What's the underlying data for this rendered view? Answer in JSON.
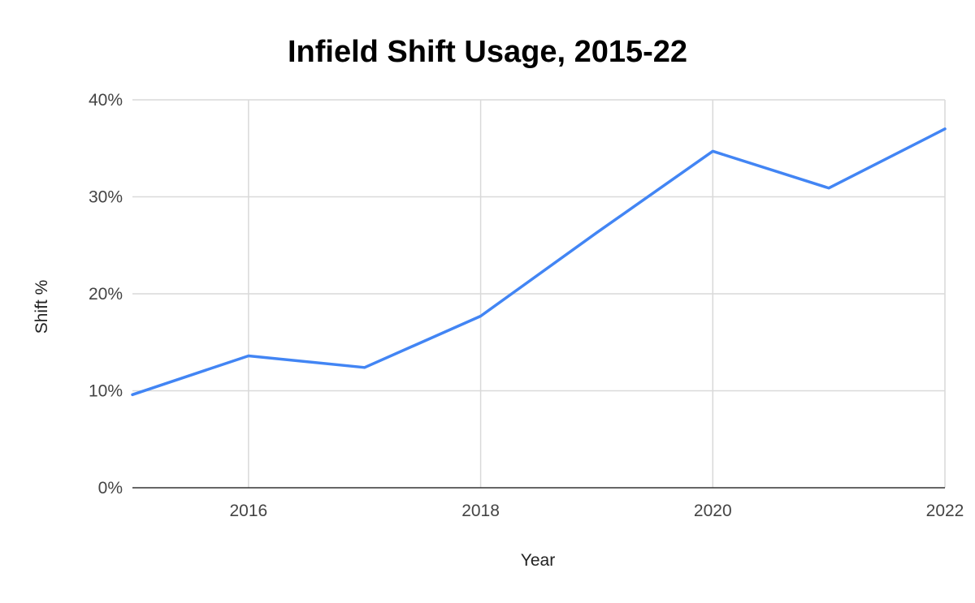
{
  "chart_data": {
    "type": "line",
    "title": "Infield Shift Usage, 2015-22",
    "xlabel": "Year",
    "ylabel": "Shift %",
    "x": [
      2015,
      2016,
      2017,
      2018,
      2019,
      2020,
      2021,
      2022
    ],
    "series": [
      {
        "values": [
          9.6,
          13.6,
          12.4,
          17.7,
          26.3,
          34.7,
          30.9,
          37.0
        ],
        "color": "#4285f4"
      }
    ],
    "xlim": [
      2015,
      2022
    ],
    "ylim": [
      0,
      40
    ],
    "x_ticks": [
      2016,
      2018,
      2020,
      2022
    ],
    "x_tick_labels": [
      "2016",
      "2018",
      "2020",
      "2022"
    ],
    "y_ticks": [
      0,
      10,
      20,
      30,
      40
    ],
    "y_tick_labels": [
      "0%",
      "10%",
      "20%",
      "30%",
      "40%"
    ],
    "grid": true,
    "legend": "none"
  }
}
